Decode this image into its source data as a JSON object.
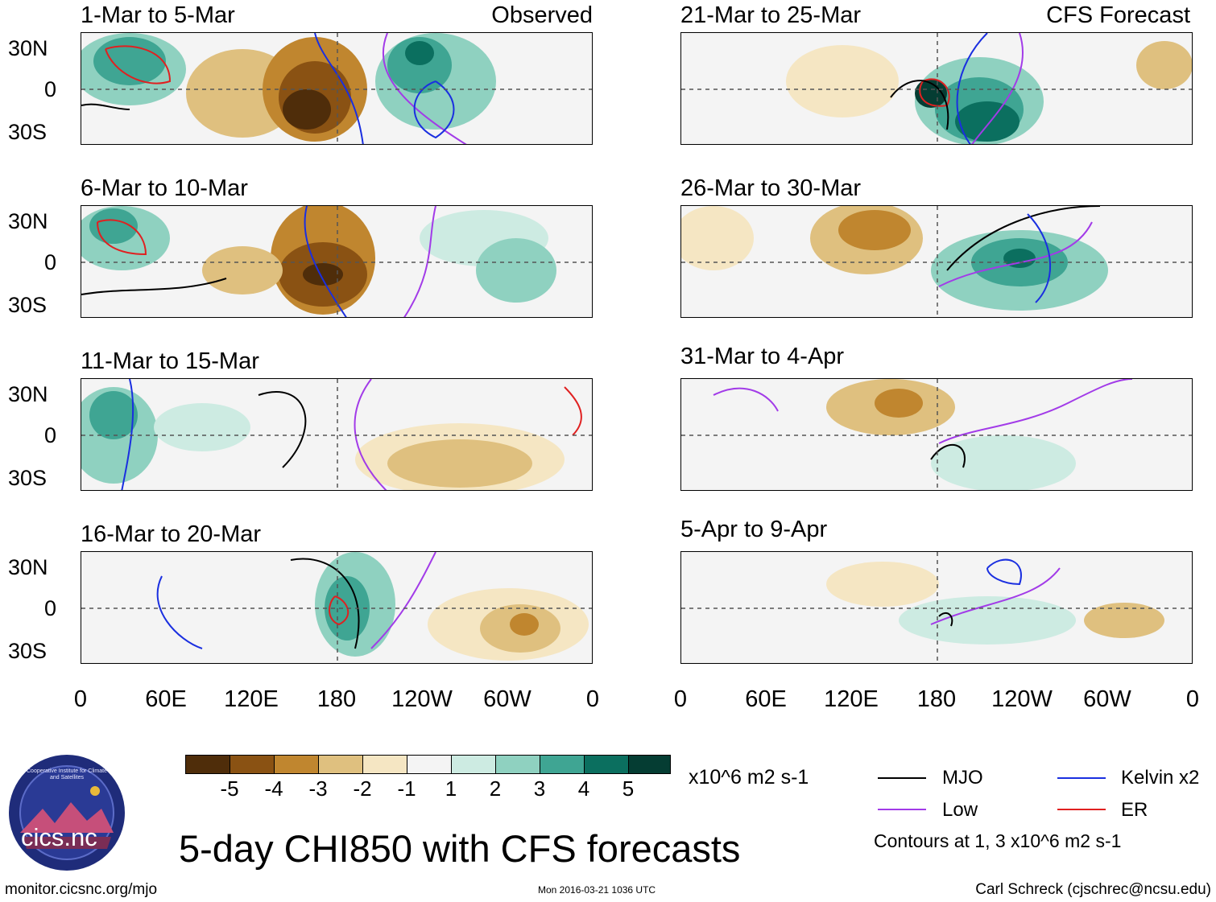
{
  "header": {
    "observed_label": "Observed",
    "forecast_label": "CFS Forecast"
  },
  "panels": {
    "observed": [
      {
        "title": "1-Mar to 5-Mar"
      },
      {
        "title": "6-Mar to 10-Mar"
      },
      {
        "title": "11-Mar to 15-Mar"
      },
      {
        "title": "16-Mar to 20-Mar"
      }
    ],
    "forecast": [
      {
        "title": "21-Mar to 25-Mar"
      },
      {
        "title": "26-Mar to 30-Mar"
      },
      {
        "title": "31-Mar to 4-Apr"
      },
      {
        "title": "5-Apr to 9-Apr"
      }
    ]
  },
  "axes": {
    "lat_labels": [
      "30N",
      "0",
      "30S"
    ],
    "lon_labels": [
      "0",
      "60E",
      "120E",
      "180",
      "120W",
      "60W",
      "0"
    ]
  },
  "colorbar": {
    "labels": [
      "-5",
      "-4",
      "-3",
      "-2",
      "-1",
      "1",
      "2",
      "3",
      "4",
      "5"
    ],
    "colors": [
      "#4f2d0a",
      "#8a5213",
      "#c0862f",
      "#dfc07f",
      "#f5e6c3",
      "#f4f4f4",
      "#cdebe2",
      "#8fd1c0",
      "#3fa593",
      "#0b6f5f",
      "#053d33"
    ],
    "units": "x10^6 m2 s-1"
  },
  "legend": {
    "items": [
      {
        "label": "MJO",
        "color": "#000000"
      },
      {
        "label": "Kelvin x2",
        "color": "#1a2fe0"
      },
      {
        "label": "Low",
        "color": "#a23be8"
      },
      {
        "label": "ER",
        "color": "#e02020"
      }
    ],
    "contours_note": "Contours at 1, 3 x10^6 m2 s-1"
  },
  "main_title": "5-day CHI850 with CFS forecasts",
  "footer": {
    "url": "monitor.cicsnc.org/mjo",
    "timestamp": "Mon 2016-03-21 1036 UTC",
    "author": "Carl Schreck (cjschrec@ncsu.edu)"
  },
  "logo": {
    "text": "cics.nc",
    "ring_text": "Cooperative Institute for Climate and Satellites"
  }
}
